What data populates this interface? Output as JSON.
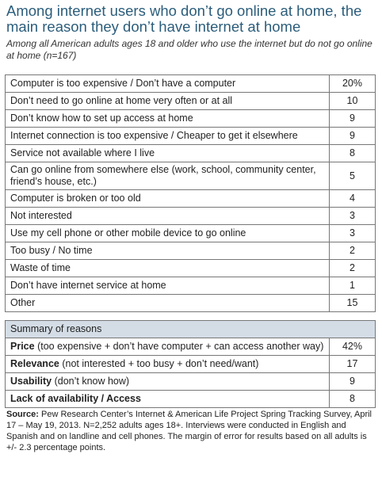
{
  "title": "Among internet users who don’t go online at home, the main reason they don’t have internet at home",
  "subtitle": "Among all American adults ages 18 and older who use the internet but do not go online at home (n=167)",
  "chart_data": {
    "type": "table",
    "rows": [
      {
        "label": "Computer is too expensive / Don’t have a computer",
        "value": "20%"
      },
      {
        "label": "Don’t need to go online at home very often or at all",
        "value": "10"
      },
      {
        "label": "Don’t know how to set up access at home",
        "value": "9"
      },
      {
        "label": "Internet connection is too expensive / Cheaper to get it elsewhere",
        "value": "9"
      },
      {
        "label": "Service not available where I live",
        "value": "8"
      },
      {
        "label": "Can go online from somewhere else (work, school, community center, friend’s house, etc.)",
        "value": "5"
      },
      {
        "label": "Computer is broken or too old",
        "value": "4"
      },
      {
        "label": "Not interested",
        "value": "3"
      },
      {
        "label": "Use my cell phone or other mobile device to go online",
        "value": "3"
      },
      {
        "label": "Too busy / No time",
        "value": "2"
      },
      {
        "label": "Waste of time",
        "value": "2"
      },
      {
        "label": "Don’t have internet service at home",
        "value": "1"
      },
      {
        "label": "Other",
        "value": "15"
      }
    ],
    "summary": {
      "header": "Summary of reasons",
      "rows": [
        {
          "bold": "Price",
          "rest": " (too expensive + don’t have computer + can access another way)",
          "value": "42%"
        },
        {
          "bold": "Relevance",
          "rest": " (not interested + too busy + don’t need/want)",
          "value": "17"
        },
        {
          "bold": "Usability",
          "rest": " (don’t know how)",
          "value": "9"
        },
        {
          "bold": "Lack of availability / Access",
          "rest": "",
          "value": "8"
        }
      ]
    }
  },
  "source": {
    "label": "Source:",
    "text": " Pew Research Center’s Internet & American Life Project Spring Tracking Survey, April 17 – May 19, 2013. N=2,252 adults ages 18+. Interviews were conducted in English and Spanish and on landline and cell phones. The margin of error for results based on all adults is +/- 2.3 percentage points."
  }
}
